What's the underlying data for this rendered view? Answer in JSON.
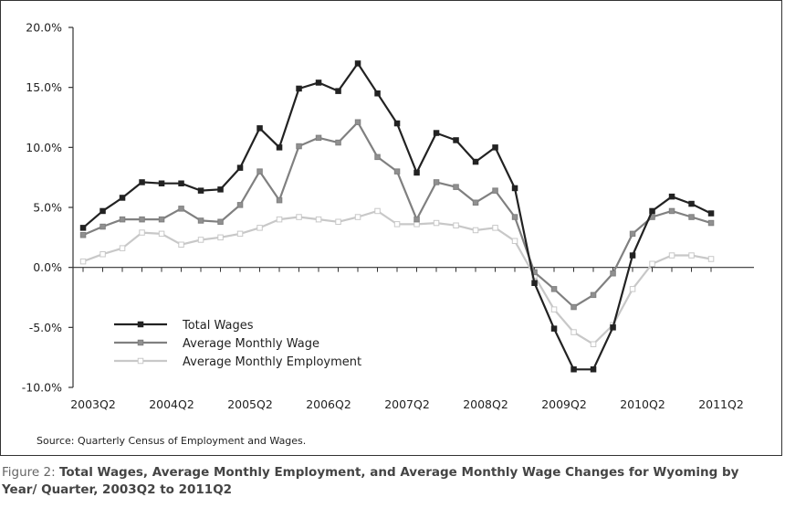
{
  "chart_data": {
    "type": "line",
    "ylim": [
      -10,
      20
    ],
    "y_ticks": [
      20,
      15,
      10,
      5,
      0,
      -5,
      -10
    ],
    "y_tick_labels": [
      "20.0%",
      "15.0%",
      "10.0%",
      "5.0%",
      "0.0%",
      "-5.0%",
      "-10.0%"
    ],
    "x_tick_labels": [
      {
        "label": "2003Q2",
        "index": 0
      },
      {
        "label": "2004Q2",
        "index": 4
      },
      {
        "label": "2005Q2",
        "index": 8
      },
      {
        "label": "2006Q2",
        "index": 12
      },
      {
        "label": "2007Q2",
        "index": 16
      },
      {
        "label": "2008Q2",
        "index": 20
      },
      {
        "label": "2009Q2",
        "index": 24
      },
      {
        "label": "2010Q2",
        "index": 28
      },
      {
        "label": "2011Q2",
        "index": 32
      }
    ],
    "series": [
      {
        "name": "Total Wages",
        "color": "#222222",
        "fill": "#222222",
        "values": [
          3.3,
          4.7,
          5.8,
          7.1,
          7.0,
          7.0,
          6.4,
          6.5,
          8.3,
          11.6,
          10.0,
          14.9,
          15.4,
          14.7,
          17.0,
          14.5,
          12.0,
          7.9,
          11.2,
          10.6,
          8.8,
          10.0,
          6.6,
          -1.3,
          -5.1,
          -8.5,
          -8.5,
          -5.0,
          1.0,
          4.7,
          5.9,
          5.3,
          4.5
        ]
      },
      {
        "name": "Average Monthly Wage",
        "color": "#808080",
        "fill": "#909090",
        "values": [
          2.7,
          3.4,
          4.0,
          4.0,
          4.0,
          4.9,
          3.9,
          3.8,
          5.2,
          8.0,
          5.6,
          10.1,
          10.8,
          10.4,
          12.1,
          9.2,
          8.0,
          4.0,
          7.1,
          6.7,
          5.4,
          6.4,
          4.2,
          -0.4,
          -1.8,
          -3.3,
          -2.3,
          -0.5,
          2.8,
          4.2,
          4.7,
          4.2,
          3.7
        ]
      },
      {
        "name": "Average Monthly Employment",
        "color": "#c8c8c8",
        "fill": "#ffffff",
        "values": [
          0.5,
          1.1,
          1.6,
          2.9,
          2.8,
          1.9,
          2.3,
          2.5,
          2.8,
          3.3,
          4.0,
          4.2,
          4.0,
          3.8,
          4.2,
          4.7,
          3.6,
          3.6,
          3.7,
          3.5,
          3.1,
          3.3,
          2.2,
          -0.7,
          -3.5,
          -5.4,
          -6.4,
          -4.8,
          -1.8,
          0.3,
          1.0,
          1.0,
          0.7
        ]
      }
    ]
  },
  "source_text": "Source: Quarterly Census of Employment and Wages.",
  "caption": {
    "lead": "Figure 2: ",
    "text": "Total Wages, Average Monthly Employment, and Average Monthly Wage Changes for Wyoming by Year/ Quarter, 2003Q2 to 2011Q2"
  }
}
